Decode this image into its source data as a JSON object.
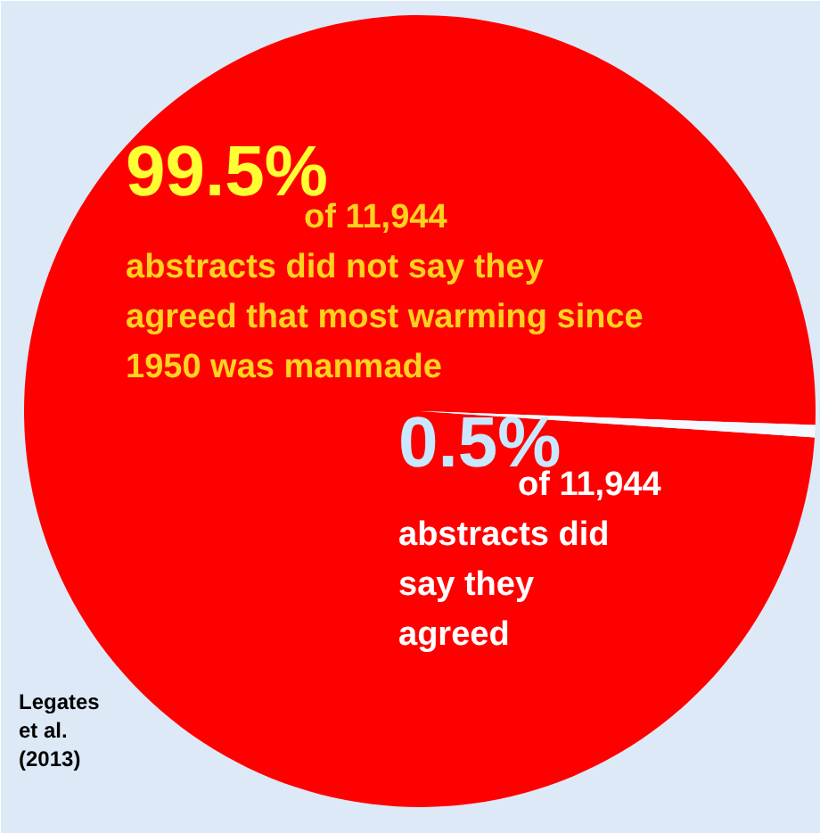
{
  "chart_data": {
    "type": "pie",
    "categories": [
      null,
      null
    ],
    "values": [
      99.5,
      0.5
    ],
    "colors": [
      "#ff0000",
      "#f4f8ff"
    ],
    "annotations": [
      "99.5%",
      "of 11,944 abstracts did not say they agreed that most warming since 1950 was manmade",
      "0.5%",
      "of 11,944 abstracts did say they agreed",
      "Legates et al. (2013)"
    ]
  }
}
